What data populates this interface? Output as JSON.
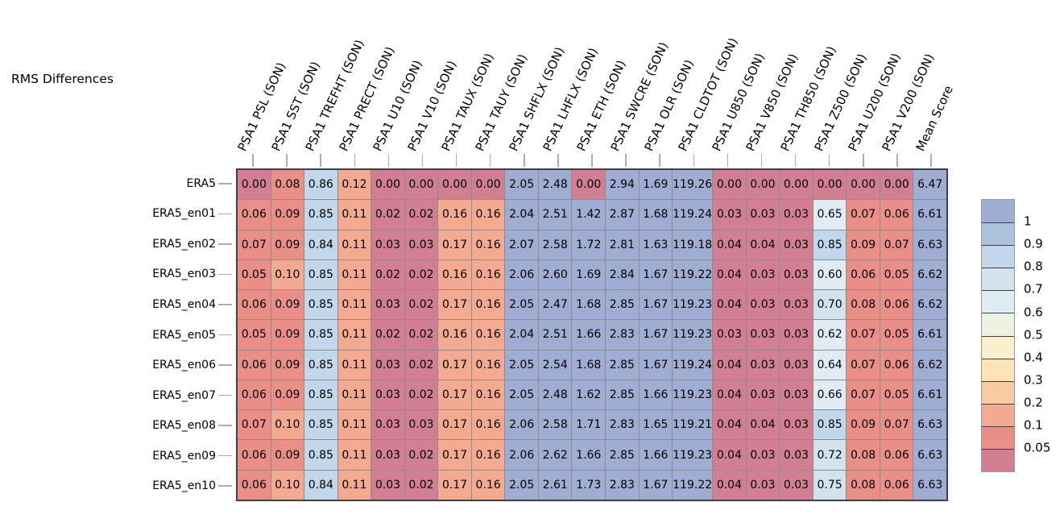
{
  "title": "RMS Differences",
  "chart_data": {
    "type": "heatmap",
    "title": "RMS Differences",
    "columns": [
      "PSA1 PSL (SON)",
      "PSA1 SST (SON)",
      "PSA1 TREFHT (SON)",
      "PSA1 PRECT (SON)",
      "PSA1 U10 (SON)",
      "PSA1 V10 (SON)",
      "PSA1 TAUX (SON)",
      "PSA1 TAUY (SON)",
      "PSA1 SHFLX (SON)",
      "PSA1 LHFLX (SON)",
      "PSA1 ETH (SON)",
      "PSA1 SWCRE (SON)",
      "PSA1 OLR (SON)",
      "PSA1 CLDTOT (SON)",
      "PSA1 U850 (SON)",
      "PSA1 V850 (SON)",
      "PSA1 TH850 (SON)",
      "PSA1 Z500 (SON)",
      "PSA1 U200 (SON)",
      "PSA1 V200 (SON)",
      "Mean Score"
    ],
    "rows": [
      "ERA5",
      "ERA5_en01",
      "ERA5_en02",
      "ERA5_en03",
      "ERA5_en04",
      "ERA5_en05",
      "ERA5_en06",
      "ERA5_en07",
      "ERA5_en08",
      "ERA5_en09",
      "ERA5_en10"
    ],
    "values": [
      [
        0.0,
        0.08,
        0.86,
        0.12,
        0.0,
        0.0,
        0.0,
        0.0,
        2.05,
        2.48,
        0.0,
        2.94,
        1.69,
        119.26,
        0.0,
        0.0,
        0.0,
        0.0,
        0.0,
        0.0,
        6.47
      ],
      [
        0.06,
        0.09,
        0.85,
        0.11,
        0.02,
        0.02,
        0.16,
        0.16,
        2.04,
        2.51,
        1.42,
        2.87,
        1.68,
        119.24,
        0.03,
        0.03,
        0.03,
        0.65,
        0.07,
        0.06,
        6.61
      ],
      [
        0.07,
        0.09,
        0.84,
        0.11,
        0.03,
        0.03,
        0.17,
        0.16,
        2.07,
        2.58,
        1.72,
        2.81,
        1.63,
        119.18,
        0.04,
        0.04,
        0.03,
        0.85,
        0.09,
        0.07,
        6.63
      ],
      [
        0.05,
        0.1,
        0.85,
        0.11,
        0.02,
        0.02,
        0.16,
        0.16,
        2.06,
        2.6,
        1.69,
        2.84,
        1.67,
        119.22,
        0.04,
        0.03,
        0.03,
        0.6,
        0.06,
        0.05,
        6.62
      ],
      [
        0.06,
        0.09,
        0.85,
        0.11,
        0.03,
        0.02,
        0.17,
        0.16,
        2.05,
        2.47,
        1.68,
        2.85,
        1.67,
        119.23,
        0.04,
        0.03,
        0.03,
        0.7,
        0.08,
        0.06,
        6.62
      ],
      [
        0.05,
        0.09,
        0.85,
        0.11,
        0.02,
        0.02,
        0.16,
        0.16,
        2.04,
        2.51,
        1.66,
        2.83,
        1.67,
        119.23,
        0.03,
        0.03,
        0.03,
        0.62,
        0.07,
        0.05,
        6.61
      ],
      [
        0.06,
        0.09,
        0.85,
        0.11,
        0.03,
        0.02,
        0.17,
        0.16,
        2.05,
        2.54,
        1.68,
        2.85,
        1.67,
        119.24,
        0.04,
        0.03,
        0.03,
        0.64,
        0.07,
        0.06,
        6.62
      ],
      [
        0.06,
        0.09,
        0.85,
        0.11,
        0.03,
        0.02,
        0.17,
        0.16,
        2.05,
        2.48,
        1.62,
        2.85,
        1.66,
        119.23,
        0.04,
        0.03,
        0.03,
        0.66,
        0.07,
        0.05,
        6.61
      ],
      [
        0.07,
        0.1,
        0.85,
        0.11,
        0.03,
        0.03,
        0.17,
        0.16,
        2.06,
        2.58,
        1.71,
        2.83,
        1.65,
        119.21,
        0.04,
        0.04,
        0.03,
        0.85,
        0.09,
        0.07,
        6.63
      ],
      [
        0.06,
        0.09,
        0.85,
        0.11,
        0.03,
        0.02,
        0.17,
        0.16,
        2.06,
        2.62,
        1.66,
        2.85,
        1.66,
        119.23,
        0.04,
        0.03,
        0.03,
        0.72,
        0.08,
        0.06,
        6.63
      ],
      [
        0.06,
        0.1,
        0.84,
        0.11,
        0.03,
        0.02,
        0.17,
        0.16,
        2.05,
        2.61,
        1.73,
        2.83,
        1.67,
        119.22,
        0.04,
        0.03,
        0.03,
        0.75,
        0.08,
        0.06,
        6.63
      ]
    ],
    "value_decimals": 2,
    "colorbar": {
      "tick_labels": [
        "1",
        "0.9",
        "0.8",
        "0.7",
        "0.6",
        "0.5",
        "0.4",
        "0.3",
        "0.2",
        "0.1",
        "0.05"
      ],
      "thresholds": [
        1,
        0.9,
        0.8,
        0.7,
        0.6,
        0.5,
        0.4,
        0.3,
        0.2,
        0.1,
        0.05
      ],
      "bin_colors": [
        "#9fadd3",
        "#adc3dd",
        "#c2d7e9",
        "#d2e3ee",
        "#dfecf3",
        "#eef2e3",
        "#faf1cc",
        "#fce4b7",
        "#f9cba2",
        "#f4aa90",
        "#e98f88",
        "#d27f93"
      ]
    },
    "style": {
      "grid_line_color": "#8b8b90",
      "outer_border_color": "#3f3f45",
      "tick_color": "#acacac",
      "text_color": "#000000"
    },
    "legend_position": "right"
  }
}
